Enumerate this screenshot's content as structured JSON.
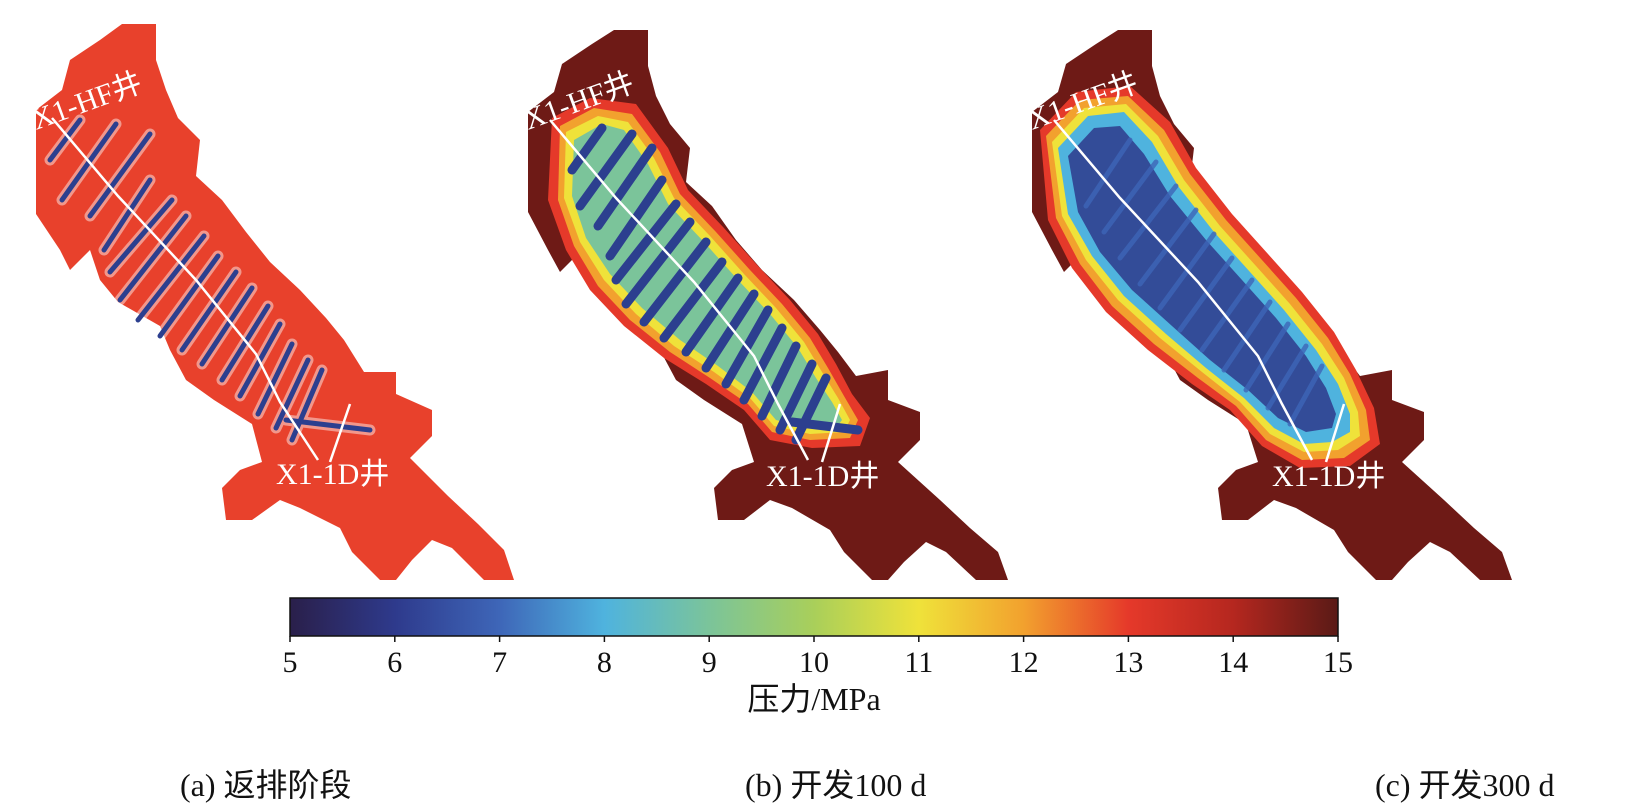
{
  "panels": [
    {
      "caption": "(a) 返排阶段",
      "well_top": "X1-HF井",
      "well_bottom": "X1-1D井",
      "stage": "flowback"
    },
    {
      "caption": "(b) 开发100 d",
      "well_top": "X1-HF井",
      "well_bottom": "X1-1D井",
      "stage": "day100"
    },
    {
      "caption": "(c) 开发300 d",
      "well_top": "X1-HF井",
      "well_bottom": "X1-1D井",
      "stage": "day300"
    }
  ],
  "colorbar": {
    "label": "压力/MPa",
    "min": 5,
    "max": 15,
    "ticks": [
      "5",
      "6",
      "7",
      "8",
      "9",
      "10",
      "11",
      "12",
      "13",
      "14",
      "15"
    ],
    "colors": [
      "#2a1f4a",
      "#2e3a8c",
      "#3e66b8",
      "#4fb3de",
      "#7bc49a",
      "#a9cf5a",
      "#efe23a",
      "#f2a12e",
      "#e5392a",
      "#b5271f",
      "#5a1a16"
    ]
  },
  "colors": {
    "flowback_background": "#e8412c",
    "developed_outer": "#6e1a16",
    "fracture": "#2c3f8f",
    "well_line": "#ffffff"
  }
}
